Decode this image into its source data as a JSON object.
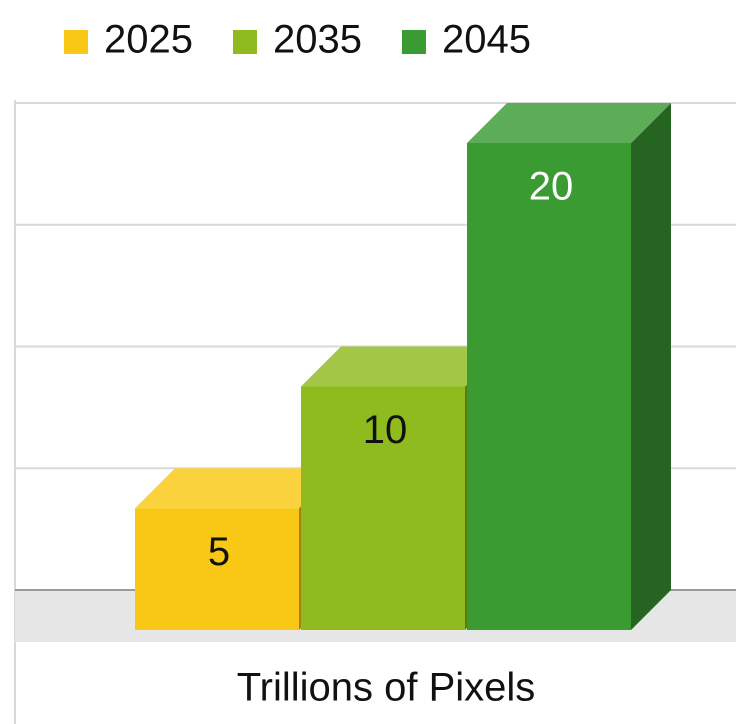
{
  "chart_data": {
    "type": "bar3d",
    "categories": [
      "Trillions of Pixels"
    ],
    "series": [
      {
        "name": "2025",
        "color": "#f8c814",
        "label_color": "#111111",
        "values": [
          5
        ]
      },
      {
        "name": "2035",
        "color": "#8fbb1f",
        "label_color": "#111111",
        "values": [
          10
        ]
      },
      {
        "name": "2045",
        "color": "#3a9b33",
        "label_color": "#ffffff",
        "values": [
          20
        ]
      }
    ],
    "ylim": [
      0,
      20
    ],
    "yticks": [
      0,
      5,
      10,
      15,
      20
    ],
    "grid": true,
    "legend": "top"
  }
}
